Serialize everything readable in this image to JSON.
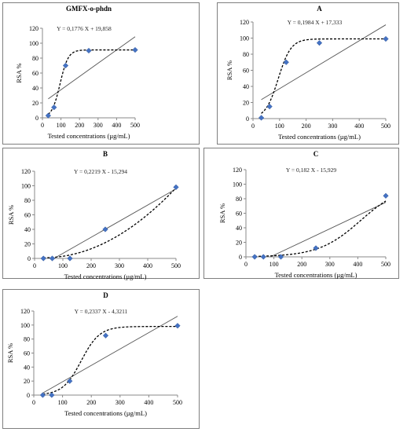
{
  "chart_data": [
    {
      "type": "scatter",
      "title": "GMFX-o-phdn",
      "equation": "Y = 0,1776 X + 19,858",
      "xlabel": "Tested concentrations (µg/mL)",
      "ylabel": "RSA %",
      "xlim": [
        0,
        500
      ],
      "ylim": [
        0,
        120
      ],
      "xticks": [
        "0",
        "100",
        "200",
        "300",
        "400",
        "500"
      ],
      "yticks": [
        "0",
        "20",
        "40",
        "60",
        "80",
        "100",
        "120"
      ],
      "marker_color": "#4472C4",
      "grid": false,
      "x": [
        31.25,
        62.5,
        125,
        250,
        500
      ],
      "y": [
        3,
        14,
        70,
        90,
        91
      ],
      "trendline": {
        "slope": 0.1776,
        "intercept": 19.858
      },
      "fit_curve": {
        "type": "sigmoid",
        "ymax": 91,
        "x50": 95,
        "k": 22
      }
    },
    {
      "type": "scatter",
      "title": "A",
      "equation": "Y = 0,1984 X + 17,333",
      "xlabel": "Tested concentrations (µg/mL)",
      "ylabel": "RSA %",
      "xlim": [
        0,
        500
      ],
      "ylim": [
        0,
        120
      ],
      "xticks": [
        "0",
        "100",
        "200",
        "300",
        "400",
        "500"
      ],
      "yticks": [
        "0",
        "20",
        "40",
        "60",
        "80",
        "100",
        "120"
      ],
      "marker_color": "#4472C4",
      "grid": false,
      "x": [
        31.25,
        62.5,
        125,
        250,
        500
      ],
      "y": [
        1,
        15,
        70,
        94,
        99
      ],
      "trendline": {
        "slope": 0.1984,
        "intercept": 17.333
      },
      "fit_curve": {
        "type": "sigmoid",
        "ymax": 99,
        "x50": 95,
        "k": 24
      }
    },
    {
      "type": "scatter",
      "title": "B",
      "equation": "Y = 0,2219 X - 15,294",
      "xlabel": "Tested concentrations (µg/mL)",
      "ylabel": "RSA %",
      "xlim": [
        0,
        500
      ],
      "ylim": [
        0,
        120
      ],
      "xticks": [
        "0",
        "100",
        "200",
        "300",
        "400",
        "500"
      ],
      "yticks": [
        "0",
        "20",
        "40",
        "60",
        "80",
        "100",
        "120"
      ],
      "marker_color": "#4472C4",
      "grid": false,
      "x": [
        31.25,
        62.5,
        125,
        250,
        500
      ],
      "y": [
        0,
        0,
        0,
        40,
        98
      ],
      "trendline": {
        "slope": 0.2219,
        "intercept": -15.294
      },
      "fit_curve": {
        "type": "poly",
        "coef": [
          1.4,
          -0.0285,
          0.00044
        ]
      }
    },
    {
      "type": "scatter",
      "title": "C",
      "equation": "Y = 0,182 X - 15,929",
      "xlabel": "Tested concentrations (µg/mL)",
      "ylabel": "RSA %",
      "xlim": [
        0,
        500
      ],
      "ylim": [
        0,
        120
      ],
      "xticks": [
        "0",
        "100",
        "200",
        "300",
        "400",
        "500"
      ],
      "yticks": [
        "0",
        "20",
        "40",
        "60",
        "80",
        "100",
        "120"
      ],
      "marker_color": "#4472C4",
      "grid": false,
      "x": [
        31.25,
        62.5,
        125,
        250,
        500
      ],
      "y": [
        0,
        0,
        0,
        12,
        84
      ],
      "trendline": {
        "slope": 0.182,
        "intercept": -15.929
      },
      "fit_curve": {
        "type": "sigmoid",
        "ymax": 100,
        "x50": 410,
        "k": 75
      }
    },
    {
      "type": "scatter",
      "title": "D",
      "equation": "Y = 0,2337 X - 4,3211",
      "xlabel": "Tested concentrations (µg/mL)",
      "ylabel": "RSA %",
      "xlim": [
        0,
        500
      ],
      "ylim": [
        0,
        120
      ],
      "xticks": [
        "0",
        "100",
        "200",
        "300",
        "400",
        "500"
      ],
      "yticks": [
        "0",
        "20",
        "40",
        "60",
        "80",
        "100",
        "120"
      ],
      "marker_color": "#4472C4",
      "grid": false,
      "x": [
        31.25,
        62.5,
        125,
        250,
        500
      ],
      "y": [
        0,
        0,
        20,
        85,
        99
      ],
      "trendline": {
        "slope": 0.2337,
        "intercept": -4.3211
      },
      "fit_curve": {
        "type": "sigmoid",
        "ymax": 98,
        "x50": 165,
        "k": 32
      }
    }
  ]
}
